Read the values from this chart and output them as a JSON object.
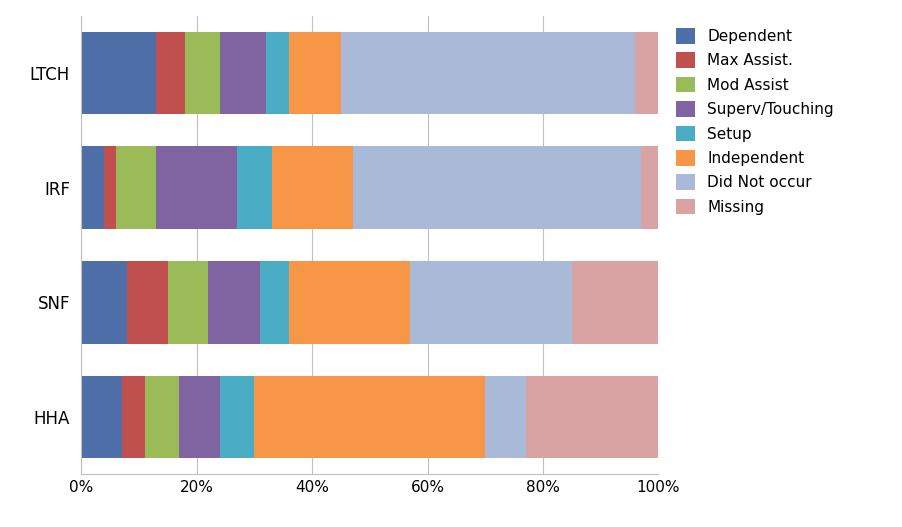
{
  "providers": [
    "LTCH",
    "IRF",
    "SNF",
    "HHA"
  ],
  "categories": [
    "Dependent",
    "Max Assist.",
    "Mod Assist",
    "Superv/Touching",
    "Setup",
    "Independent",
    "Did Not occur",
    "Missing"
  ],
  "colors": [
    "#4F6FA8",
    "#C0504D",
    "#9BBB59",
    "#8064A2",
    "#4BACC6",
    "#F79646",
    "#A9BAD8",
    "#D9A3A3"
  ],
  "data": {
    "LTCH": [
      13,
      5,
      6,
      8,
      4,
      9,
      51,
      4
    ],
    "IRF": [
      4,
      2,
      7,
      14,
      6,
      14,
      50,
      3
    ],
    "SNF": [
      8,
      7,
      7,
      9,
      5,
      21,
      28,
      15
    ],
    "HHA": [
      7,
      4,
      6,
      7,
      6,
      40,
      7,
      23
    ]
  },
  "background_color": "#FFFFFF",
  "bar_height": 0.72,
  "xlim": [
    0,
    100
  ],
  "xtick_labels": [
    "0%",
    "20%",
    "40%",
    "60%",
    "80%",
    "100%"
  ],
  "xtick_vals": [
    0,
    20,
    40,
    60,
    80,
    100
  ],
  "figsize": [
    9.02,
    5.27
  ],
  "dpi": 100,
  "legend_fontsize": 11,
  "ytick_fontsize": 12,
  "xtick_fontsize": 11
}
